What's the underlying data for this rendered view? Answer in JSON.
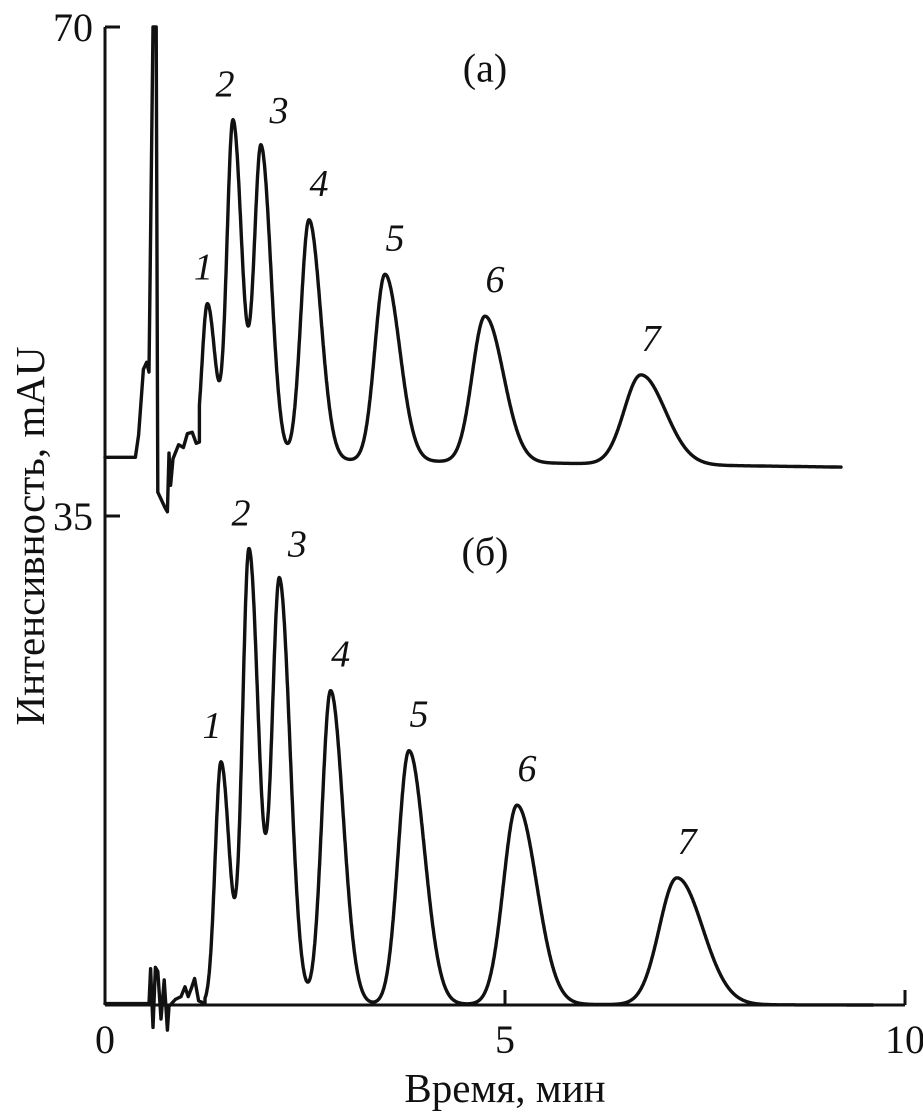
{
  "chart_data": {
    "type": "line",
    "xlabel": "Время, мин",
    "ylabel": "Интенсивность, mAU",
    "xlim": [
      0,
      10
    ],
    "ylim": [
      0,
      70
    ],
    "x_ticks": [
      {
        "value": 0,
        "label": "0"
      },
      {
        "value": 5,
        "label": "5"
      },
      {
        "value": 10,
        "label": "10"
      }
    ],
    "y_ticks": [
      {
        "value": 35,
        "label": "35"
      },
      {
        "value": 70,
        "label": "70"
      }
    ],
    "grid": false,
    "legend": "none",
    "series": [
      {
        "panel_label": "(а)",
        "baseline": 39.2,
        "end_x": 9.2,
        "end_baseline": 38.5,
        "peak_labels_style": "italic",
        "peaks": [
          {
            "label": "1",
            "x": 1.28,
            "y": 50.2
          },
          {
            "label": "2",
            "x": 1.6,
            "y": 63.3
          },
          {
            "label": "3",
            "x": 1.95,
            "y": 61.4
          },
          {
            "label": "4",
            "x": 2.55,
            "y": 56.2
          },
          {
            "label": "5",
            "x": 3.5,
            "y": 52.3
          },
          {
            "label": "6",
            "x": 4.75,
            "y": 49.3
          },
          {
            "label": "7",
            "x": 6.7,
            "y": 45.1
          }
        ]
      },
      {
        "panel_label": "(б)",
        "baseline": 0.1,
        "end_x": 9.6,
        "end_baseline": 0.0,
        "peak_labels_style": "italic",
        "peaks": [
          {
            "label": "1",
            "x": 1.45,
            "y": 17.4
          },
          {
            "label": "2",
            "x": 1.8,
            "y": 32.6
          },
          {
            "label": "3",
            "x": 2.18,
            "y": 30.4
          },
          {
            "label": "4",
            "x": 2.82,
            "y": 22.5
          },
          {
            "label": "5",
            "x": 3.8,
            "y": 18.2
          },
          {
            "label": "6",
            "x": 5.15,
            "y": 14.3
          },
          {
            "label": "7",
            "x": 7.15,
            "y": 9.1
          }
        ]
      }
    ]
  }
}
